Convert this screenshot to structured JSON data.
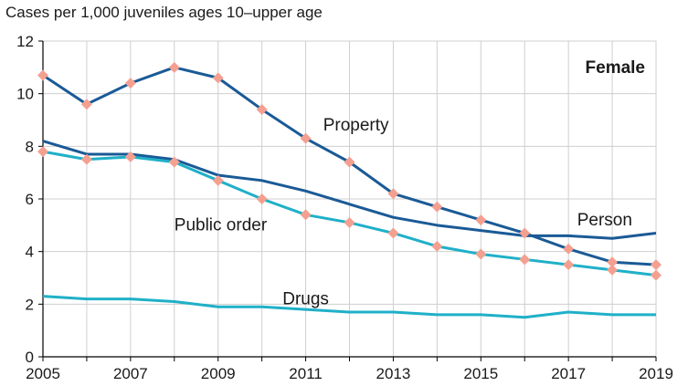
{
  "chart_data": {
    "type": "line",
    "title": "",
    "ylabel": "Cases per 1,000 juveniles ages 10–upper age",
    "xlabel": "",
    "panel_label": "Female",
    "xlim": [
      2005,
      2019
    ],
    "ylim": [
      0,
      12
    ],
    "xticks": [
      2005,
      2007,
      2009,
      2011,
      2013,
      2015,
      2017,
      2019
    ],
    "yticks": [
      0,
      2,
      4,
      6,
      8,
      10,
      12
    ],
    "grid": true,
    "x": [
      2005,
      2006,
      2007,
      2008,
      2009,
      2010,
      2011,
      2012,
      2013,
      2014,
      2015,
      2016,
      2017,
      2018,
      2019
    ],
    "series": [
      {
        "name": "Property",
        "color": "#1a5a96",
        "markers": true,
        "values": [
          10.7,
          9.6,
          10.4,
          11.0,
          10.6,
          9.4,
          8.3,
          7.4,
          6.2,
          5.7,
          5.2,
          4.7,
          4.1,
          3.6,
          3.5
        ]
      },
      {
        "name": "Person",
        "color": "#1a5a96",
        "markers": false,
        "values": [
          8.2,
          7.7,
          7.7,
          7.5,
          6.9,
          6.7,
          6.3,
          5.8,
          5.3,
          5.0,
          4.8,
          4.6,
          4.6,
          4.5,
          4.7
        ]
      },
      {
        "name": "Public order",
        "color": "#1fb0c8",
        "markers": true,
        "values": [
          7.8,
          7.5,
          7.6,
          7.4,
          6.7,
          6.0,
          5.4,
          5.1,
          4.7,
          4.2,
          3.9,
          3.7,
          3.5,
          3.3,
          3.1
        ]
      },
      {
        "name": "Drugs",
        "color": "#1fb0c8",
        "markers": false,
        "values": [
          2.3,
          2.2,
          2.2,
          2.1,
          1.9,
          1.9,
          1.8,
          1.7,
          1.7,
          1.6,
          1.6,
          1.5,
          1.7,
          1.6,
          1.6
        ]
      }
    ],
    "marker_color": "#f4a090",
    "grid_color": "#cfcfcf",
    "axis_color": "#000000"
  }
}
